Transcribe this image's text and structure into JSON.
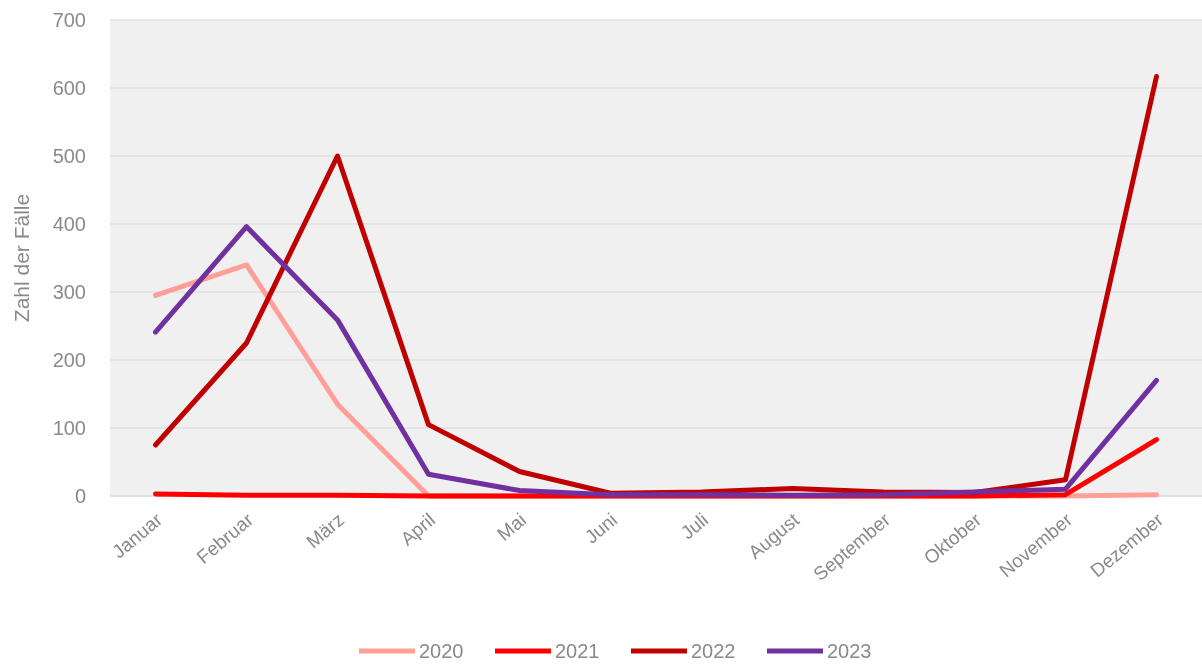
{
  "chart_data": {
    "type": "line",
    "ylabel": "Zahl der Fälle",
    "categories": [
      "Januar",
      "Februar",
      "März",
      "April",
      "Mai",
      "Juni",
      "Juli",
      "August",
      "September",
      "Oktober",
      "November",
      "Dezember"
    ],
    "series": [
      {
        "name": "2020",
        "color": "#ff9f98",
        "values": [
          295,
          340,
          135,
          0,
          0,
          0,
          0,
          0,
          0,
          0,
          0,
          2
        ]
      },
      {
        "name": "2021",
        "color": "#ff0000",
        "values": [
          3,
          1,
          1,
          0,
          0,
          0,
          0,
          0,
          0,
          0,
          2,
          83
        ]
      },
      {
        "name": "2022",
        "color": "#c00000",
        "values": [
          75,
          225,
          500,
          105,
          36,
          4,
          6,
          11,
          6,
          5,
          24,
          617
        ]
      },
      {
        "name": "2023",
        "color": "#7030a0",
        "values": [
          241,
          396,
          259,
          32,
          8,
          2,
          2,
          1,
          2,
          6,
          10,
          170
        ]
      }
    ],
    "ylim": [
      0,
      700
    ],
    "yticks": [
      0,
      100,
      200,
      300,
      400,
      500,
      600,
      700
    ],
    "grid": "y",
    "legend": "bottom",
    "marker": "none",
    "line_style": "solid"
  }
}
